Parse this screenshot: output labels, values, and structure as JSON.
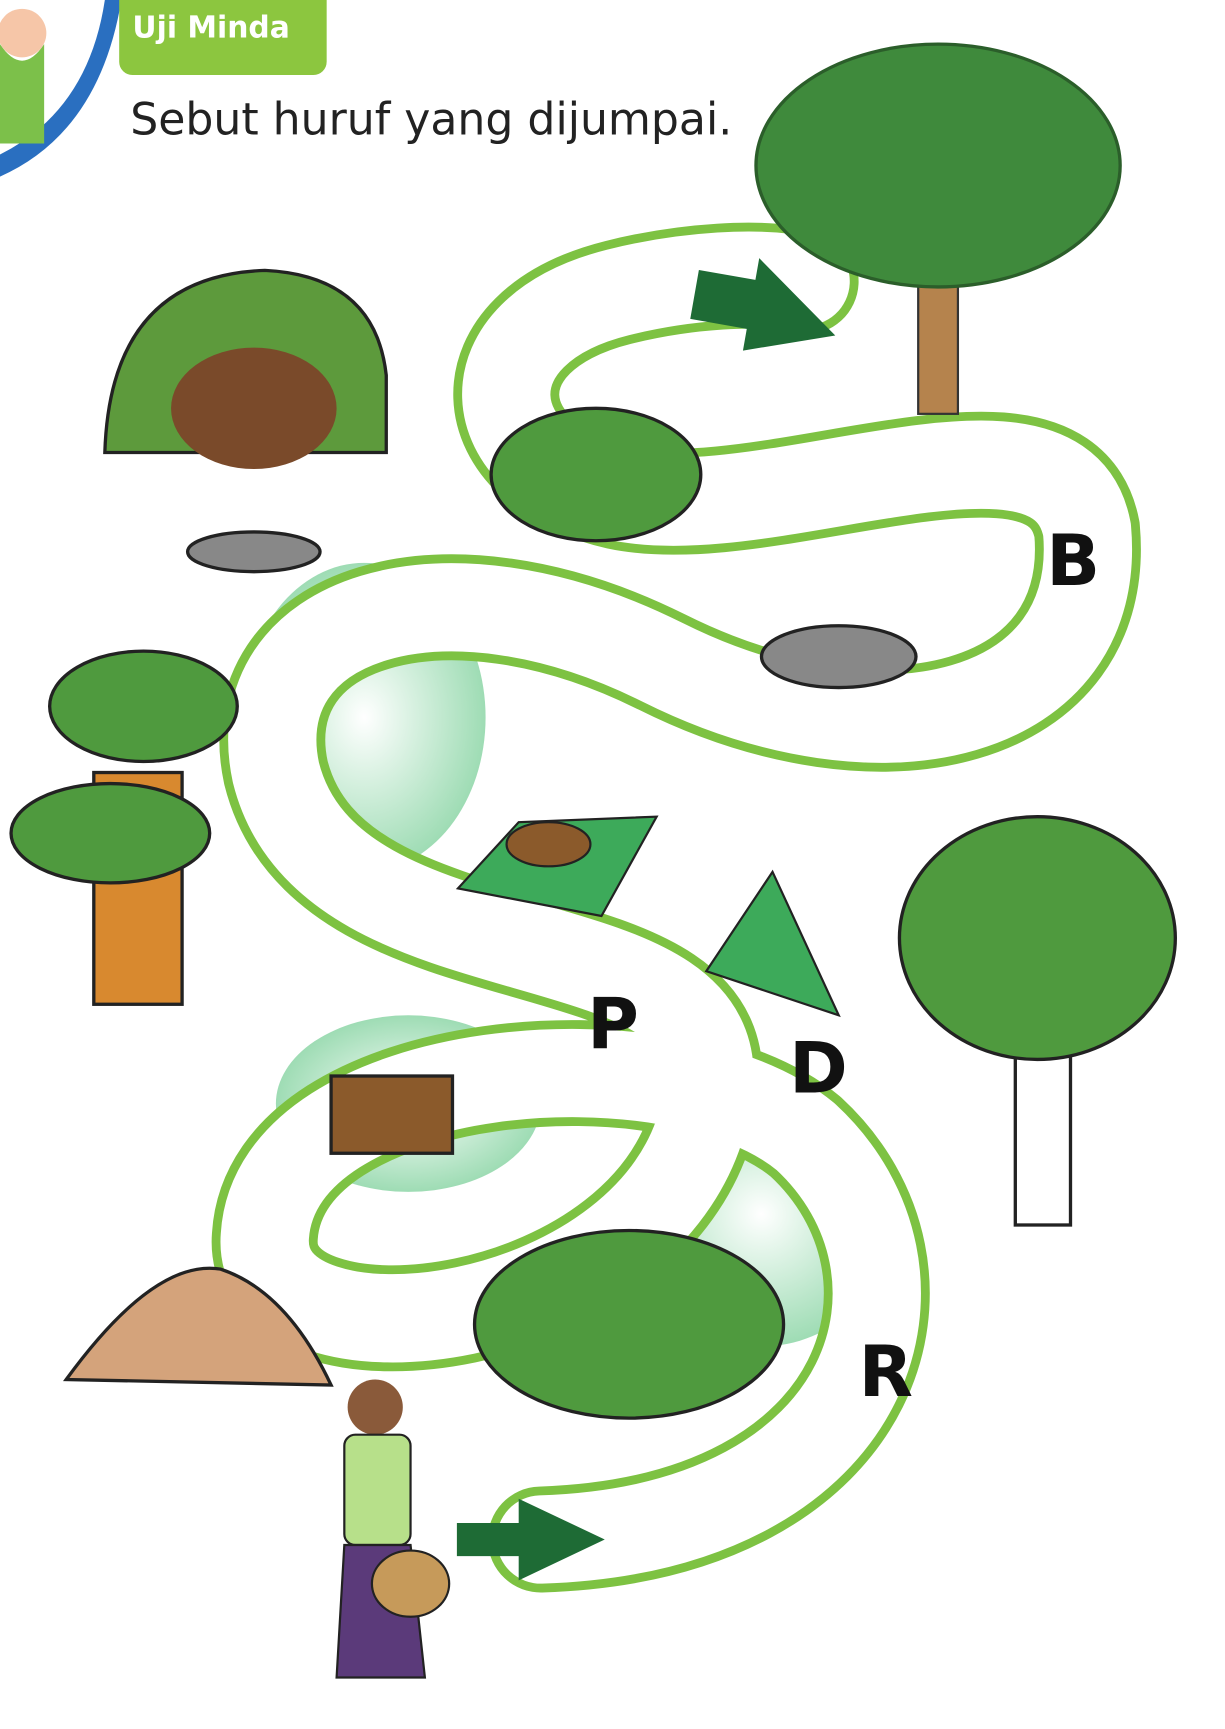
{
  "header": {
    "badge": "Uji Minda",
    "instruction": "Sebut huruf yang dijumpai."
  },
  "letters": [
    "B",
    "P",
    "D",
    "R"
  ]
}
